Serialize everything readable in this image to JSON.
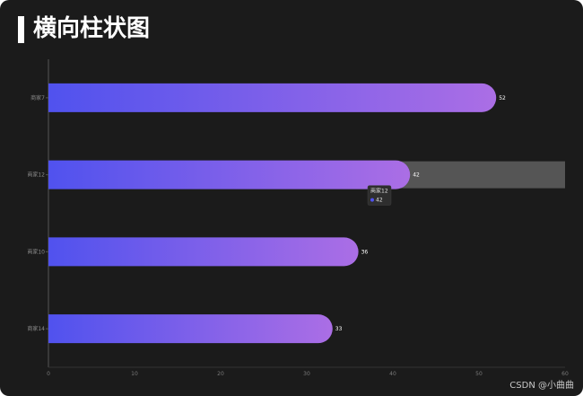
{
  "header": {
    "title": "横向柱状图"
  },
  "watermark": "CSDN @小曲曲",
  "chart_data": {
    "type": "bar",
    "orientation": "horizontal",
    "categories": [
      "商家7",
      "商家12",
      "商家10",
      "商家14"
    ],
    "values": [
      52,
      42,
      36,
      33
    ],
    "xlim": [
      0,
      60
    ],
    "xticks": [
      0,
      10,
      20,
      30,
      40,
      50,
      60
    ],
    "grid": false,
    "bar_gradient": [
      "#5052ee",
      "#ab6ee5"
    ],
    "axis_color": "#555555",
    "label_color": "#ffffff",
    "hover": {
      "category": "商家12",
      "value": "42",
      "shadow_color": "#555555",
      "tooltip_bg": "#2e2e2e"
    }
  }
}
